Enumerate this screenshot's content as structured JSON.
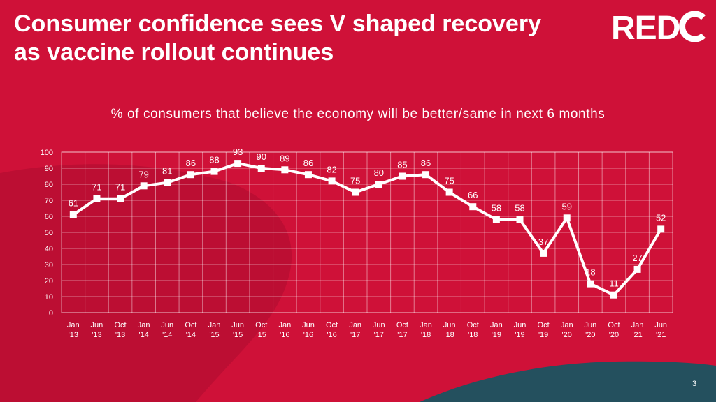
{
  "slide": {
    "title": "Consumer confidence sees V shaped recovery as vaccine rollout continues",
    "logo_text": "REDC",
    "page_number": "3"
  },
  "colors": {
    "background": "#cf1138",
    "accent_shape": "#b80e33",
    "teal_shape": "#24505e",
    "line": "#ffffff"
  },
  "chart_data": {
    "type": "line",
    "title": "% of consumers that believe the economy will be better/same in next 6 months",
    "categories": [
      "Jan '13",
      "Jun '13",
      "Oct '13",
      "Jan '14",
      "Jun '14",
      "Oct '14",
      "Jan '15",
      "Jun '15",
      "Oct '15",
      "Jan '16",
      "Jun '16",
      "Oct '16",
      "Jan '17",
      "Jun '17",
      "Oct '17",
      "Jan '18",
      "Jun '18",
      "Oct '18",
      "Jan '19",
      "Jun '19",
      "Oct '19",
      "Jan '20",
      "Jun '20",
      "Oct '20",
      "Jan '21",
      "Jun '21"
    ],
    "values": [
      61,
      71,
      71,
      79,
      81,
      86,
      88,
      93,
      90,
      89,
      86,
      82,
      75,
      80,
      85,
      86,
      75,
      66,
      58,
      58,
      37,
      59,
      18,
      11,
      27,
      52
    ],
    "ylim": [
      0,
      100
    ],
    "yticks": [
      0,
      10,
      20,
      30,
      40,
      50,
      60,
      70,
      80,
      90,
      100
    ],
    "grid": true,
    "legend": "none"
  }
}
